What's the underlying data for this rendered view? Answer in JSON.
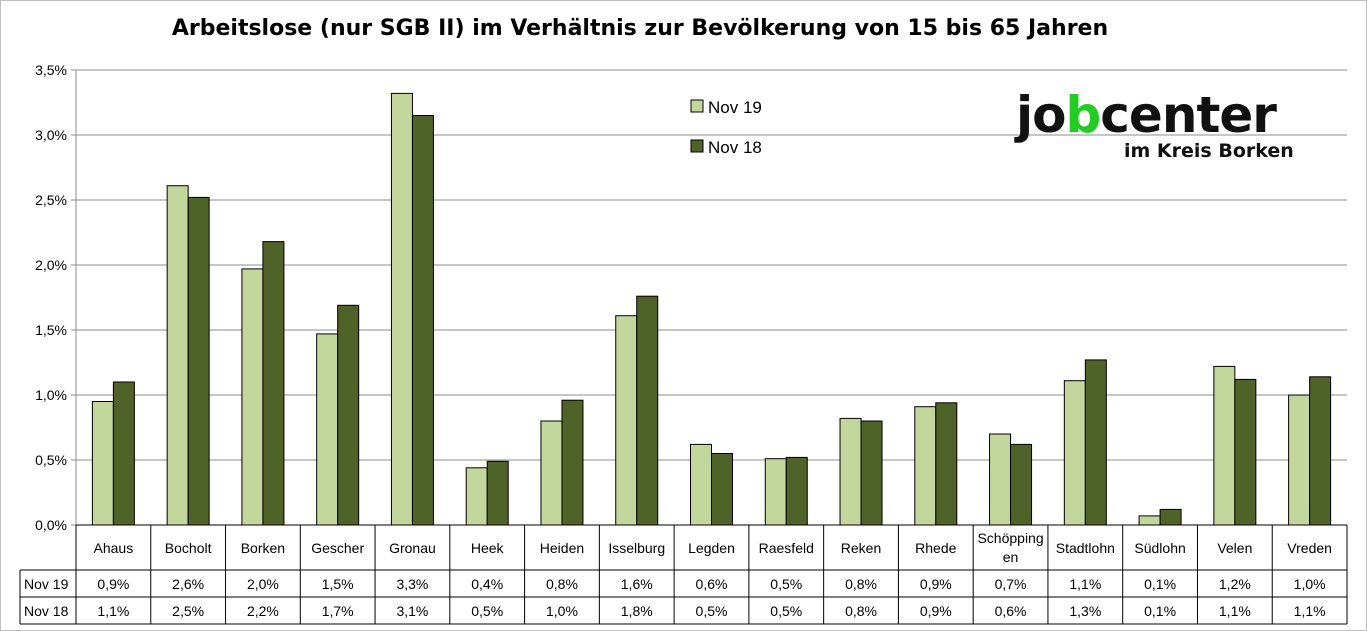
{
  "chart_data": {
    "type": "bar",
    "title": "Arbeitslose (nur SGB II) im Verhältnis zur Bevölkerung von 15 bis 65 Jahren",
    "categories": [
      "Ahaus",
      "Bocholt",
      "Borken",
      "Gescher",
      "Gronau",
      "Heek",
      "Heiden",
      "Isselburg",
      "Legden",
      "Raesfeld",
      "Reken",
      "Rhede",
      "Schöpping en",
      "Stadtlohn",
      "Südlohn",
      "Velen",
      "Vreden"
    ],
    "series": [
      {
        "name": "Nov 19",
        "color": "#c3d69b",
        "values": [
          0.95,
          2.61,
          1.97,
          1.47,
          3.32,
          0.44,
          0.8,
          1.61,
          0.62,
          0.51,
          0.82,
          0.91,
          0.7,
          1.11,
          0.07,
          1.22,
          1.0
        ],
        "labels": [
          "0,9%",
          "2,6%",
          "2,0%",
          "1,5%",
          "3,3%",
          "0,4%",
          "0,8%",
          "1,6%",
          "0,6%",
          "0,5%",
          "0,8%",
          "0,9%",
          "0,7%",
          "1,1%",
          "0,1%",
          "1,2%",
          "1,0%"
        ]
      },
      {
        "name": "Nov 18",
        "color": "#4f6228",
        "values": [
          1.1,
          2.52,
          2.18,
          1.69,
          3.15,
          0.49,
          0.96,
          1.76,
          0.55,
          0.52,
          0.8,
          0.94,
          0.62,
          1.27,
          0.12,
          1.12,
          1.14
        ],
        "labels": [
          "1,1%",
          "2,5%",
          "2,2%",
          "1,7%",
          "3,1%",
          "0,5%",
          "1,0%",
          "1,8%",
          "0,5%",
          "0,5%",
          "0,8%",
          "0,9%",
          "0,6%",
          "1,3%",
          "0,1%",
          "1,1%",
          "1,1%"
        ]
      }
    ],
    "yticks": [
      "0,0%",
      "0,5%",
      "1,0%",
      "1,5%",
      "2,0%",
      "2,5%",
      "3,0%",
      "3,5%"
    ],
    "ylim": [
      0,
      3.5
    ],
    "grid": true,
    "legend_position": "top-center",
    "data_table": true
  },
  "logo": {
    "main_left": "jo",
    "main_b": "b",
    "main_right": "center",
    "sub": "im Kreis Borken"
  }
}
